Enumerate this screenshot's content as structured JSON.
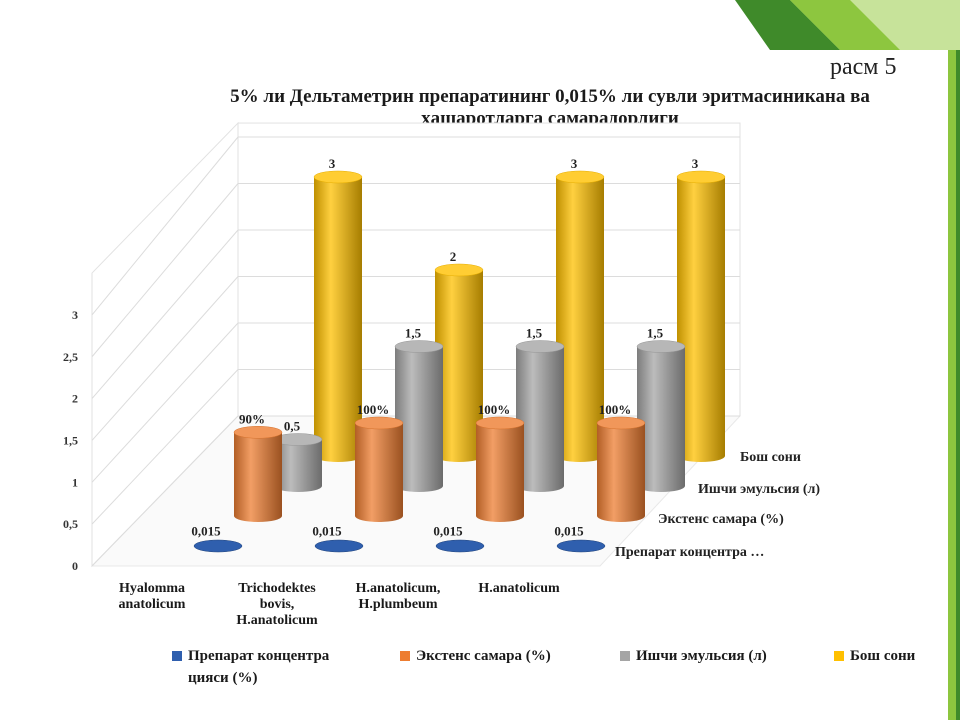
{
  "page_label": "расм 5",
  "colors": {
    "deco_dark": "#3f8a2a",
    "deco_light": "#8dc63f",
    "deco_pale": "#c7e39a",
    "series": [
      "#2f5fae",
      "#ed7d31",
      "#a5a5a5",
      "#ffc000"
    ]
  },
  "chart_data": {
    "type": "bar",
    "style": "3d-cylinder",
    "title_lines": [
      "5% ли Дельтаметрин препаратининг 0,015% ли сувли эритмасиникана ва",
      "ҳашаротларга самарадорлиги"
    ],
    "categories": [
      [
        "Hyalomma",
        "anatolicum"
      ],
      [
        "Trichodektes",
        "bovis,",
        "H.anatolicum"
      ],
      [
        "H.anatolicum,",
        "H.plumbeum"
      ],
      [
        "H.anatolicum"
      ]
    ],
    "y_ticks": [
      "0",
      "0,5",
      "1",
      "1,5",
      "2",
      "2,5",
      "3"
    ],
    "ylim": [
      0,
      3
    ],
    "grid": true,
    "legend_position": "bottom",
    "series": [
      {
        "name": "Препарат концентра",
        "depth_label": "Препарат концентра      …",
        "values": [
          0.015,
          0.015,
          0.015,
          0.015
        ],
        "labels": [
          "0,015",
          "0,015",
          "0,015",
          "0,015"
        ]
      },
      {
        "name": "Экстенс самара (%)",
        "depth_label": "Экстенс самара (%)",
        "values": [
          0.9,
          1,
          1,
          1
        ],
        "labels": [
          "90%",
          "100%",
          "100%",
          "100%"
        ]
      },
      {
        "name": "Ишчи эмульсия (л)",
        "depth_label": "Ишчи эмульсия (л)",
        "values": [
          0.5,
          1.5,
          1.5,
          1.5
        ],
        "labels": [
          "0,5",
          "1,5",
          "1,5",
          "1,5"
        ]
      },
      {
        "name": "Бош сони",
        "depth_label": "Бош сони",
        "values": [
          3,
          2,
          3,
          3
        ],
        "labels": [
          "3",
          "2",
          "3",
          "3"
        ]
      }
    ],
    "legend_entries": [
      [
        "Препарат концентра",
        "цияси (%)"
      ],
      [
        "Экстенс самара (%)"
      ],
      [
        "Ишчи эмульсия (л)"
      ],
      [
        "Бош сони"
      ]
    ]
  }
}
